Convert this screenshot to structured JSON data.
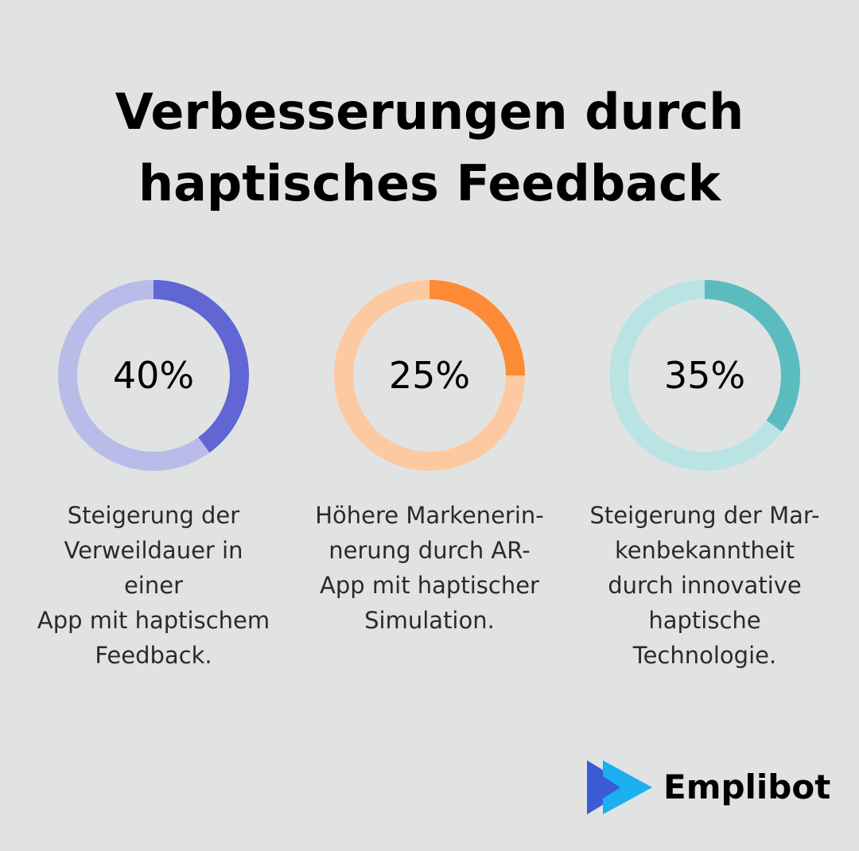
{
  "title_lines": [
    "Verbesserungen durch",
    "haptisches Feedback"
  ],
  "chart_data": {
    "type": "pie",
    "items": [
      {
        "value": 40,
        "label": "40%",
        "description_lines": [
          "Steigerung der",
          "Verweildauer in einer",
          "App mit haptischem",
          "Feedback."
        ],
        "color": "#6066d3",
        "track_color": "#b9bbe9"
      },
      {
        "value": 25,
        "label": "25%",
        "description_lines": [
          "Höhere Markenerin-",
          "nerung durch AR-",
          "App mit haptischer",
          "Simulation."
        ],
        "color": "#fd8b35",
        "track_color": "#fdc9a1"
      },
      {
        "value": 35,
        "label": "35%",
        "description_lines": [
          "Steigerung der Mar-",
          "kenbekanntheit",
          "durch innovative",
          "haptische",
          "Technologie."
        ],
        "color": "#5bbcbf",
        "track_color": "#bae3e4"
      }
    ]
  },
  "brand": {
    "name": "Emplibot",
    "icon": "play-arrow-logo-icon",
    "colors": [
      "#3a5bd6",
      "#1ab0f0"
    ]
  },
  "background_color": "#e1e3e2"
}
